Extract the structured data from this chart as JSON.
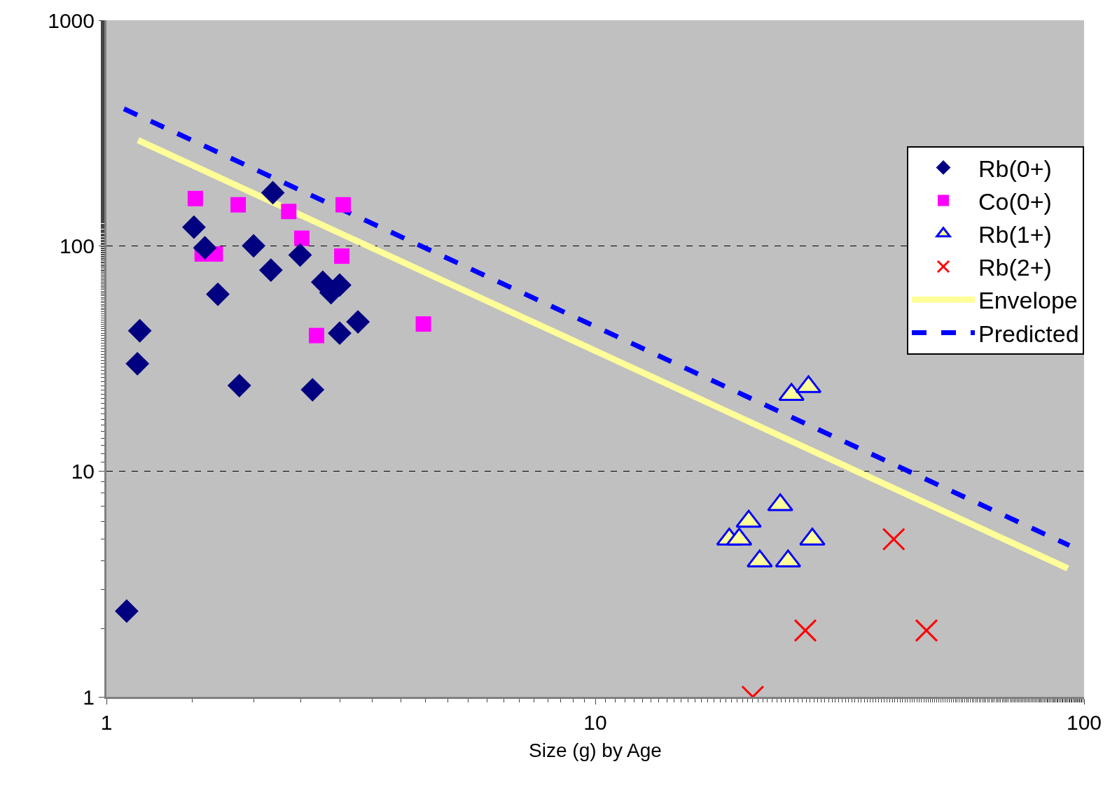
{
  "chart_data": {
    "type": "scatter",
    "xlabel": "Size (g) by Age",
    "log": "xy",
    "grid": "y",
    "legend": "right",
    "xlim": [
      1,
      100
    ],
    "xticks": [
      1,
      10,
      100
    ],
    "ylim": [
      1,
      1000
    ],
    "yticks": [
      1,
      10,
      100,
      1000
    ],
    "series": [
      {
        "name": "Rb(0+)",
        "color": "#000080",
        "marker": "diamond",
        "x": [
          1.1,
          1.157,
          1.17,
          1.51,
          1.59,
          1.69,
          1.87,
          2.0,
          2.17,
          2.19,
          2.49,
          2.64,
          2.77,
          2.88,
          3.0,
          3.0,
          3.27
        ],
        "values": [
          2.4,
          30,
          42,
          121,
          98,
          61,
          24,
          100,
          78,
          172,
          91,
          23,
          69,
          62,
          67,
          41,
          46
        ]
      },
      {
        "name": "Co(0+)",
        "color": "#ff00ff",
        "marker": "square",
        "x": [
          1.52,
          1.57,
          1.67,
          1.86,
          2.36,
          2.51,
          3.05,
          3.03,
          2.69,
          4.45
        ],
        "values": [
          162,
          92,
          92,
          152,
          142,
          108,
          152,
          90,
          40,
          45
        ]
      },
      {
        "name": "Rb(1+)",
        "color": "#ffff99",
        "marker": "triangle",
        "x": [
          18.8,
          19.7,
          20.6,
          21.7,
          23.9,
          24.8,
          27.8,
          25.2,
          27.3
        ],
        "values": [
          5.0,
          5.0,
          6.0,
          4.0,
          7.1,
          4.0,
          5.0,
          21.9,
          23.7
        ]
      },
      {
        "name": "Rb(2+)",
        "color": "#ff0000",
        "marker": "cross",
        "x": [
          21.0,
          26.9,
          40.8,
          47.6
        ],
        "values": [
          1.0,
          1.97,
          5.0,
          1.97
        ]
      },
      {
        "name": "Envelope",
        "type": "line",
        "color": "#ffff99",
        "line_style": "solid",
        "x": [
          1.161,
          92.6
        ],
        "values": [
          294,
          3.71
        ]
      },
      {
        "name": "Predicted",
        "type": "line",
        "color": "#0000ff",
        "line_style": "dashed",
        "x": [
          1.086,
          93.3
        ],
        "values": [
          405,
          4.69
        ]
      }
    ]
  }
}
